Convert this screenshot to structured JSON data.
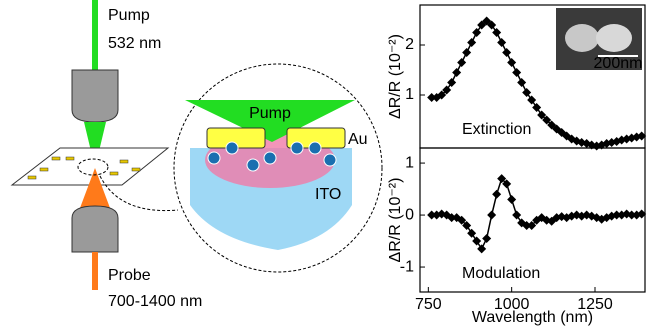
{
  "diagram": {
    "pump_label": "Pump",
    "pump_wavelength": "532 nm",
    "probe_label": "Probe",
    "probe_wavelength": "700-1400 nm",
    "inset_pump": "Pump",
    "gold_label": "Au",
    "substrate_label": "ITO"
  },
  "chart_data": [
    {
      "type": "line",
      "ylabel": "ΔR/R (10⁻²)",
      "annotation": "Extinction",
      "scale_bar": "200nm",
      "x": [
        760,
        775,
        790,
        805,
        820,
        835,
        850,
        865,
        880,
        895,
        910,
        925,
        940,
        955,
        970,
        985,
        1000,
        1015,
        1030,
        1045,
        1060,
        1075,
        1090,
        1105,
        1120,
        1135,
        1150,
        1165,
        1180,
        1195,
        1210,
        1225,
        1240,
        1255,
        1270,
        1285,
        1300,
        1315,
        1330,
        1345,
        1360,
        1375,
        1390
      ],
      "series": [
        {
          "color": "#000000",
          "values": [
            0.95,
            0.95,
            1.0,
            1.1,
            1.25,
            1.45,
            1.65,
            1.85,
            2.05,
            2.25,
            2.4,
            2.48,
            2.4,
            2.25,
            2.05,
            1.85,
            1.65,
            1.45,
            1.25,
            1.05,
            0.9,
            0.75,
            0.6,
            0.5,
            0.4,
            0.32,
            0.25,
            0.18,
            0.12,
            0.08,
            0.05,
            0.03,
            0.0,
            -0.02,
            0.0,
            0.03,
            0.05,
            0.07,
            0.1,
            0.12,
            0.14,
            0.16,
            0.18
          ]
        }
      ],
      "xlim": [
        725,
        1400
      ],
      "ylim": [
        -0.06,
        2.8
      ],
      "yticks": [
        1,
        2
      ]
    },
    {
      "type": "line",
      "ylabel": "ΔR/R (10⁻²)",
      "annotation": "Modulation",
      "xlabel": "Wavelength (nm)",
      "x": [
        760,
        775,
        790,
        805,
        820,
        835,
        850,
        865,
        880,
        895,
        910,
        925,
        940,
        955,
        970,
        985,
        1000,
        1015,
        1030,
        1045,
        1060,
        1075,
        1090,
        1105,
        1120,
        1135,
        1150,
        1165,
        1180,
        1195,
        1210,
        1225,
        1240,
        1255,
        1270,
        1285,
        1300,
        1315,
        1330,
        1345,
        1360,
        1375,
        1390
      ],
      "series": [
        {
          "color": "#000000",
          "values": [
            0,
            0,
            0.02,
            0,
            -0.05,
            -0.05,
            -0.1,
            -0.2,
            -0.35,
            -0.5,
            -0.65,
            -0.45,
            0,
            0.4,
            0.7,
            0.6,
            0.3,
            0,
            -0.15,
            -0.2,
            -0.2,
            -0.1,
            -0.05,
            -0.1,
            -0.12,
            -0.05,
            -0.03,
            -0.05,
            -0.02,
            0,
            -0.02,
            0,
            -0.02,
            -0.05,
            -0.08,
            -0.05,
            -0.02,
            0,
            0,
            0.02,
            0,
            0,
            0.02
          ]
        }
      ],
      "xlim": [
        725,
        1400
      ],
      "xticks": [
        750,
        1000,
        1250
      ],
      "ylim": [
        -1.48,
        1.29
      ],
      "yticks": [
        -1,
        0,
        1
      ]
    }
  ]
}
